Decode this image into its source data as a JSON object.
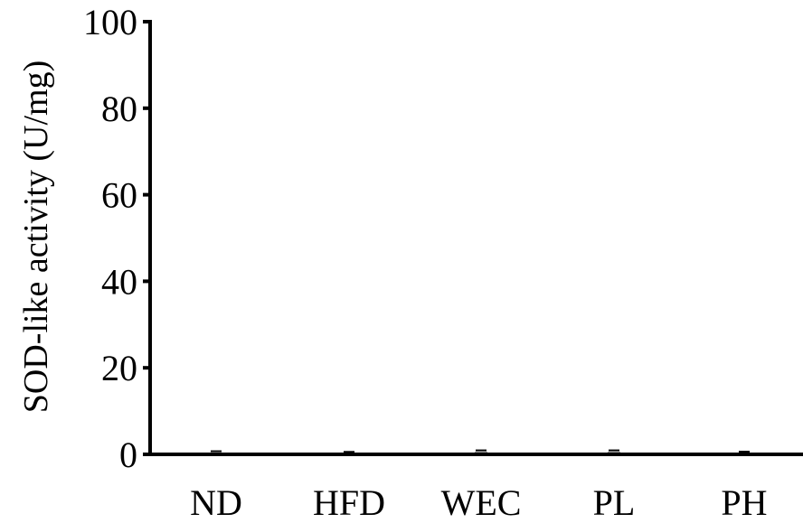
{
  "chart_data": {
    "type": "bar",
    "title": "",
    "xlabel": "",
    "ylabel": "SOD-like activity  (U/mg)",
    "categories": [
      "ND",
      "HFD",
      "WEC",
      "PL",
      "PH"
    ],
    "values": [
      0.3,
      0.15,
      0.5,
      0.5,
      0.2
    ],
    "ylim": [
      0,
      100
    ],
    "yticks": [
      "0",
      "20",
      "40",
      "60",
      "80",
      "100"
    ],
    "ytick_values": [
      0,
      20,
      40,
      60,
      80,
      100
    ],
    "grid": false,
    "legend": "none",
    "bar_color": "#000000"
  }
}
